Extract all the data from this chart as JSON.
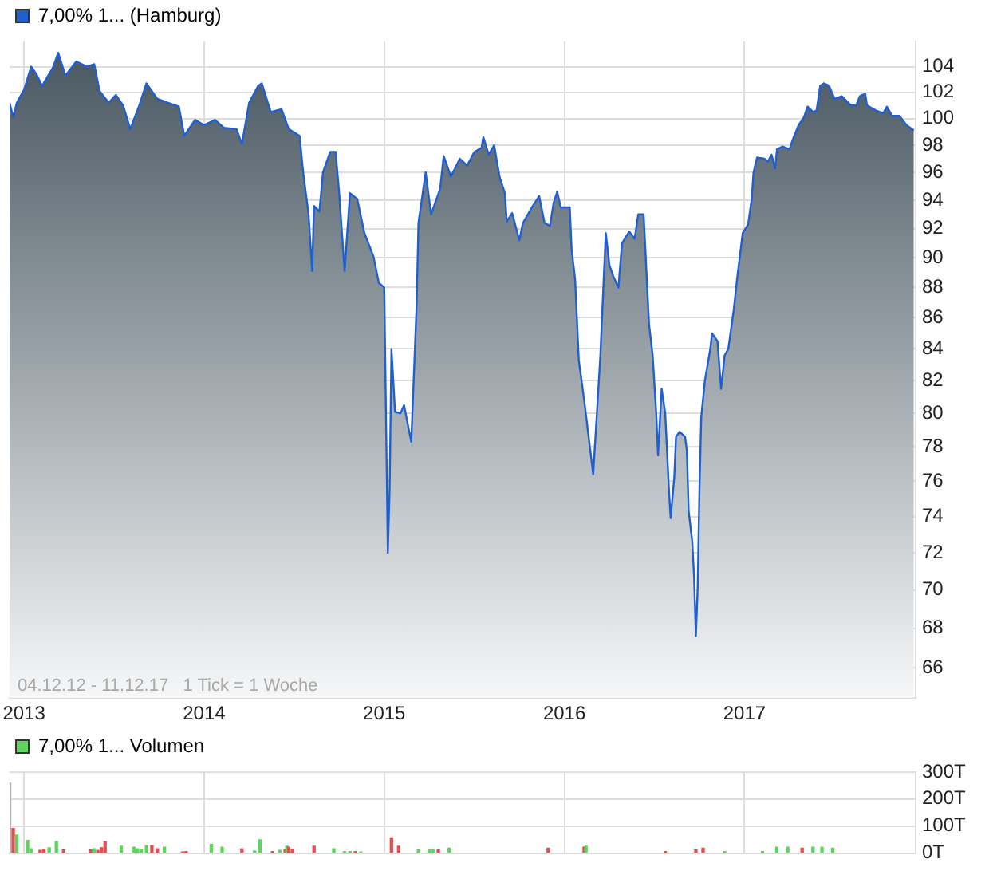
{
  "chart_data": [
    {
      "type": "area",
      "log": "y",
      "legend": "top left",
      "grid": true,
      "xlim": [
        2012.92,
        2017.95
      ],
      "xticks": [
        2013,
        2014,
        2015,
        2016,
        2017
      ],
      "ylim": [
        64.5,
        106
      ],
      "yticks": [
        66,
        68,
        70,
        72,
        74,
        76,
        78,
        80,
        82,
        84,
        86,
        88,
        90,
        92,
        94,
        96,
        98,
        100,
        102,
        104
      ],
      "annotations": [
        "04.12.12 - 11.12.17   1 Tick = 1 Woche"
      ],
      "series": [
        {
          "name": "7,00% 1... (Hamburg)",
          "color": "#1f5fd0",
          "x": [
            2012.92,
            2012.94,
            2012.96,
            2013.0,
            2013.04,
            2013.07,
            2013.1,
            2013.16,
            2013.19,
            2013.23,
            2013.29,
            2013.35,
            2013.39,
            2013.42,
            2013.47,
            2013.51,
            2013.55,
            2013.59,
            2013.64,
            2013.68,
            2013.74,
            2013.8,
            2013.86,
            2013.89,
            2013.95,
            2014.0,
            2014.06,
            2014.11,
            2014.18,
            2014.21,
            2014.25,
            2014.3,
            2014.32,
            2014.37,
            2014.43,
            2014.47,
            2014.53,
            2014.55,
            2014.58,
            2014.6,
            2014.61,
            2014.64,
            2014.66,
            2014.7,
            2014.73,
            2014.75,
            2014.78,
            2014.81,
            2014.85,
            2014.89,
            2014.94,
            2014.97,
            2015.0,
            2015.02,
            2015.03,
            2015.04,
            2015.06,
            2015.09,
            2015.11,
            2015.15,
            2015.18,
            2015.19,
            2015.23,
            2015.26,
            2015.31,
            2015.33,
            2015.37,
            2015.42,
            2015.46,
            2015.5,
            2015.54,
            2015.55,
            2015.58,
            2015.61,
            2015.64,
            2015.67,
            2015.68,
            2015.71,
            2015.75,
            2015.77,
            2015.82,
            2015.86,
            2015.89,
            2015.92,
            2015.94,
            2015.96,
            2015.98,
            2016.03,
            2016.04,
            2016.06,
            2016.08,
            2016.11,
            2016.16,
            2016.2,
            2016.21,
            2016.23,
            2016.25,
            2016.27,
            2016.3,
            2016.32,
            2016.36,
            2016.39,
            2016.41,
            2016.44,
            2016.46,
            2016.47,
            2016.49,
            2016.51,
            2016.52,
            2016.54,
            2016.56,
            2016.58,
            2016.59,
            2016.61,
            2016.62,
            2016.64,
            2016.67,
            2016.68,
            2016.69,
            2016.71,
            2016.72,
            2016.73,
            2016.74,
            2016.75,
            2016.76,
            2016.78,
            2016.81,
            2016.82,
            2016.85,
            2016.87,
            2016.89,
            2016.91,
            2016.94,
            2016.96,
            2016.99,
            2017.02,
            2017.04,
            2017.05,
            2017.07,
            2017.11,
            2017.13,
            2017.15,
            2017.17,
            2017.18,
            2017.21,
            2017.25,
            2017.27,
            2017.3,
            2017.33,
            2017.35,
            2017.38,
            2017.4,
            2017.42,
            2017.44,
            2017.47,
            2017.5,
            2017.54,
            2017.59,
            2017.62,
            2017.64,
            2017.67,
            2017.68,
            2017.73,
            2017.77,
            2017.79,
            2017.82,
            2017.86,
            2017.9,
            2017.94
          ],
          "values": [
            101.2,
            100.1,
            101.2,
            102.2,
            104,
            103.4,
            102.5,
            103.9,
            105.1,
            103.3,
            104.4,
            104,
            104.2,
            102.1,
            101.2,
            101.8,
            101,
            99.2,
            101,
            102.7,
            101.5,
            101.2,
            100.9,
            98.7,
            99.9,
            99.5,
            99.9,
            99.3,
            99.2,
            98.1,
            101.2,
            102.5,
            102.7,
            100.5,
            100.7,
            99.2,
            98.7,
            96,
            93,
            89.1,
            93.6,
            93.2,
            96,
            97.5,
            97.5,
            94.5,
            89.1,
            94.5,
            94.1,
            91.7,
            90.1,
            88.3,
            88,
            72,
            75.6,
            84,
            80.1,
            80,
            80.5,
            78.3,
            86.9,
            92.4,
            96,
            93,
            94.8,
            97.2,
            95.7,
            97,
            96.5,
            97.5,
            97.8,
            98.6,
            97.3,
            98,
            95.7,
            94.5,
            92.5,
            93.1,
            91.2,
            92.4,
            93.5,
            94.3,
            92.4,
            92.2,
            93.8,
            94.6,
            93.5,
            93.5,
            90.6,
            88.5,
            83.3,
            80.8,
            76.4,
            83.6,
            86.3,
            91.7,
            89.5,
            88.8,
            88,
            91,
            91.8,
            91.3,
            93,
            93,
            88,
            85.6,
            83.6,
            80,
            77.5,
            81.5,
            80,
            75.6,
            73.9,
            76.2,
            78.6,
            78.9,
            78.6,
            77.8,
            74.3,
            72.6,
            70.7,
            67.6,
            70.1,
            75.6,
            79.8,
            82,
            84,
            85,
            84.5,
            81.5,
            83.6,
            84,
            86.5,
            88.7,
            91.7,
            92.3,
            94.1,
            96,
            97.1,
            97,
            96.8,
            97.3,
            96.3,
            97.7,
            97.9,
            97.7,
            98.5,
            99.5,
            100.1,
            100.9,
            100.5,
            100.6,
            102.5,
            102.7,
            102.5,
            101.5,
            101.7,
            101,
            101,
            101.7,
            101.9,
            101,
            100.6,
            100.4,
            100.9,
            100.2,
            100.2,
            99.5,
            99.1
          ]
        }
      ]
    },
    {
      "type": "bar",
      "legend": "top left",
      "grid": true,
      "tick_labels": "y",
      "xlim": [
        2012.92,
        2017.95
      ],
      "xticks": [
        2013,
        2014,
        2015,
        2016,
        2017
      ],
      "ylim": [
        0,
        300
      ],
      "yticks": [
        {
          "value": 0,
          "label": "0T"
        },
        {
          "value": 100,
          "label": "100T"
        },
        {
          "value": 200,
          "label": "200T"
        },
        {
          "value": 300,
          "label": "300T"
        }
      ],
      "series": [
        {
          "name": "7,00% 1... Volumen",
          "color": "#5fd35f",
          "x": [
            2012.92,
            2012.94,
            2012.96,
            2013.02,
            2013.04,
            2013.09,
            2013.11,
            2013.14,
            2013.18,
            2013.22,
            2013.37,
            2013.39,
            2013.41,
            2013.43,
            2013.45,
            2013.54,
            2013.61,
            2013.63,
            2013.65,
            2013.68,
            2013.71,
            2013.74,
            2013.78,
            2013.88,
            2013.9,
            2014.04,
            2014.1,
            2014.21,
            2014.28,
            2014.31,
            2014.38,
            2014.42,
            2014.45,
            2014.46,
            2014.47,
            2014.49,
            2014.61,
            2014.72,
            2014.78,
            2014.81,
            2014.84,
            2014.87,
            2015.04,
            2015.08,
            2015.19,
            2015.25,
            2015.27,
            2015.3,
            2015.36,
            2015.91,
            2016.11,
            2016.12,
            2016.56,
            2016.73,
            2016.77,
            2016.89,
            2017.1,
            2017.18,
            2017.24,
            2017.32,
            2017.38,
            2017.43,
            2017.49
          ],
          "values": [
            260,
            91,
            67,
            47,
            16,
            10,
            14,
            20,
            43,
            12,
            12,
            16,
            10,
            20,
            43,
            26,
            22,
            16,
            14,
            28,
            28,
            16,
            22,
            4,
            6,
            32,
            22,
            16,
            8,
            49,
            6,
            10,
            12,
            26,
            22,
            14,
            26,
            16,
            6,
            6,
            6,
            4,
            57,
            26,
            12,
            12,
            12,
            12,
            18,
            18,
            22,
            26,
            6,
            12,
            18,
            6,
            6,
            22,
            22,
            18,
            22,
            22,
            18
          ],
          "colors": [
            "#b0b0b0",
            "#e05050",
            "#5fd35f",
            "#5fd35f",
            "#5fd35f",
            "#e05050",
            "#e05050",
            "#5fd35f",
            "#5fd35f",
            "#e05050",
            "#e05050",
            "#5fd35f",
            "#e05050",
            "#e05050",
            "#e05050",
            "#5fd35f",
            "#5fd35f",
            "#5fd35f",
            "#5fd35f",
            "#5fd35f",
            "#e05050",
            "#e05050",
            "#5fd35f",
            "#e05050",
            "#e05050",
            "#5fd35f",
            "#5fd35f",
            "#e05050",
            "#5fd35f",
            "#5fd35f",
            "#e05050",
            "#5fd35f",
            "#e05050",
            "#5fd35f",
            "#e05050",
            "#e05050",
            "#e05050",
            "#5fd35f",
            "#5fd35f",
            "#5fd35f",
            "#e05050",
            "#5fd35f",
            "#e05050",
            "#e05050",
            "#5fd35f",
            "#5fd35f",
            "#5fd35f",
            "#e05050",
            "#5fd35f",
            "#e05050",
            "#e05050",
            "#5fd35f",
            "#e05050",
            "#e05050",
            "#e05050",
            "#5fd35f",
            "#5fd35f",
            "#5fd35f",
            "#5fd35f",
            "#e05050",
            "#5fd35f",
            "#5fd35f",
            "#5fd35f"
          ]
        }
      ]
    }
  ]
}
